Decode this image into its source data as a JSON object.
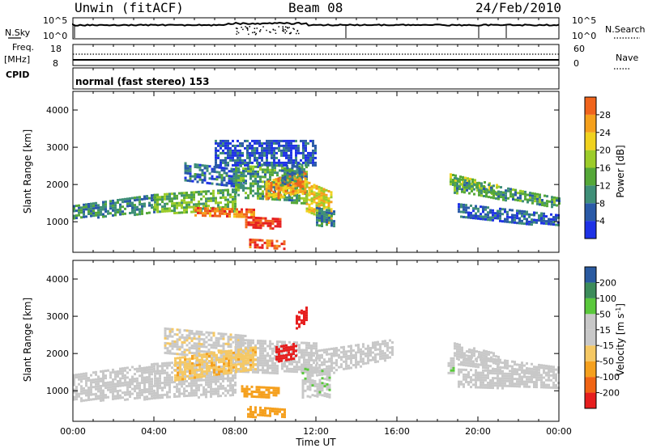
{
  "header": {
    "station": "Unwin (fitACF)",
    "beam": "Beam 08",
    "date": "24/Feb/2010"
  },
  "summary": {
    "nsky_label": "N.Sky",
    "nsky_ticks": [
      "10^5",
      "10^0"
    ],
    "nsearch_label": "N.Search",
    "nsearch_ticks": [
      "10^5",
      "10^0"
    ],
    "freq_label": "Freq.",
    "freq_unit": "[MHz]",
    "freq_ticks": [
      "18",
      "8"
    ],
    "nave_label": "Nave",
    "nave_ticks": [
      "60",
      "0"
    ],
    "cpid_label": "CPID",
    "cpid_text": "normal (fast stereo) 153"
  },
  "xaxis": {
    "label": "Time UT",
    "ticks": [
      "00:00",
      "04:00",
      "08:00",
      "12:00",
      "16:00",
      "20:00",
      "00:00"
    ]
  },
  "colors": {
    "power": [
      "#1e32e6",
      "#2a5aa8",
      "#3f8f78",
      "#55a838",
      "#9ccc2a",
      "#f0d21e",
      "#f5a01c",
      "#f0641c",
      "#e62020"
    ],
    "velocity": [
      "#e61e1e",
      "#f06414",
      "#f5a01e",
      "#f5c864",
      "#c8c8c8",
      "#c8c8c8",
      "#5ac83c",
      "#3c8c5a",
      "#2a5aa0",
      "#1e2ad2"
    ]
  },
  "chart_data": [
    {
      "type": "heatmap",
      "title": "",
      "xlabel": "",
      "ylabel": "Slant Range [km]",
      "xlim": [
        0,
        24
      ],
      "ylim": [
        180,
        4500
      ],
      "yticks": [
        "1000",
        "2000",
        "3000",
        "4000"
      ],
      "colorbar": {
        "label": "Power [dB]",
        "ticks": [
          "4",
          "8",
          "12",
          "16",
          "20",
          "24",
          "28"
        ],
        "range": [
          0,
          30
        ]
      },
      "bands": [
        {
          "t0": 0.0,
          "t1": 4.0,
          "r0": 1100,
          "r1": 1450,
          "r0e": 1250,
          "r1e": 1750,
          "v": 8
        },
        {
          "t0": 4.0,
          "t1": 8.0,
          "r0": 1250,
          "r1": 1750,
          "r0e": 1300,
          "r1e": 1900,
          "v": 12
        },
        {
          "t0": 6.0,
          "t1": 9.0,
          "r0": 1150,
          "r1": 1400,
          "r0e": 1100,
          "r1e": 1350,
          "v": 24
        },
        {
          "t0": 5.5,
          "t1": 8.5,
          "r0": 2100,
          "r1": 2600,
          "r0e": 1900,
          "r1e": 2400,
          "v": 6
        },
        {
          "t0": 8.0,
          "t1": 11.5,
          "r0": 1700,
          "r1": 2600,
          "r0e": 1500,
          "r1e": 2500,
          "v": 10
        },
        {
          "t0": 9.5,
          "t1": 11.5,
          "r0": 1600,
          "r1": 2100,
          "r0e": 1800,
          "r1e": 2400,
          "v": 22
        },
        {
          "t0": 11.5,
          "t1": 12.8,
          "r0": 1300,
          "r1": 2100,
          "r0e": 900,
          "r1e": 1800,
          "v": 18
        },
        {
          "t0": 12.0,
          "t1": 12.9,
          "r0": 900,
          "r1": 1400,
          "r0e": 900,
          "r1e": 1300,
          "v": 8
        },
        {
          "t0": 8.5,
          "t1": 10.2,
          "r0": 850,
          "r1": 1150,
          "r0e": 850,
          "r1e": 1100,
          "v": 28
        },
        {
          "t0": 8.7,
          "t1": 10.4,
          "r0": 300,
          "r1": 550,
          "r0e": 300,
          "r1e": 500,
          "v": 27
        },
        {
          "t0": 10.3,
          "t1": 11.3,
          "r0": 2000,
          "r1": 2400,
          "r0e": 2200,
          "r1e": 2700,
          "v": 8
        },
        {
          "t0": 7.0,
          "t1": 12.0,
          "r0": 2500,
          "r1": 3200,
          "r0e": 2500,
          "r1e": 3200,
          "v": 4
        },
        {
          "t0": 18.6,
          "t1": 21.0,
          "r0": 2000,
          "r1": 2300,
          "r0e": 1700,
          "r1e": 2000,
          "v": 14
        },
        {
          "t0": 18.8,
          "t1": 24.0,
          "r0": 1800,
          "r1": 2200,
          "r0e": 1400,
          "r1e": 1650,
          "v": 10
        },
        {
          "t0": 19.0,
          "t1": 24.0,
          "r0": 1100,
          "r1": 1500,
          "r0e": 900,
          "r1e": 1200,
          "v": 5
        }
      ]
    },
    {
      "type": "heatmap",
      "title": "",
      "xlabel": "Time UT",
      "ylabel": "Slant Range [km]",
      "xlim": [
        0,
        24
      ],
      "ylim": [
        180,
        4500
      ],
      "yticks": [
        "1000",
        "2000",
        "3000",
        "4000"
      ],
      "colorbar": {
        "label": "Velocity [m s^-1]",
        "ticks": [
          "-200",
          "-100",
          "-50",
          "-15",
          "15",
          "50",
          "100",
          "200"
        ],
        "levels": [
          -250,
          -200,
          -100,
          -50,
          -15,
          15,
          50,
          100,
          200,
          250
        ]
      },
      "bands": [
        {
          "t0": 0.0,
          "t1": 4.0,
          "r0": 750,
          "r1": 1450,
          "r0e": 800,
          "r1e": 1750,
          "v": 0
        },
        {
          "t0": 4.0,
          "t1": 8.0,
          "r0": 800,
          "r1": 1750,
          "r0e": 900,
          "r1e": 1900,
          "v": 0
        },
        {
          "t0": 4.5,
          "t1": 8.5,
          "r0": 2000,
          "r1": 2700,
          "r0e": 1800,
          "r1e": 2500,
          "v": -5
        },
        {
          "t0": 8.0,
          "t1": 12.0,
          "r0": 1500,
          "r1": 2400,
          "r0e": 1500,
          "r1e": 2300,
          "v": 0
        },
        {
          "t0": 12.0,
          "t1": 15.8,
          "r0": 1400,
          "r1": 2100,
          "r0e": 1900,
          "r1e": 2400,
          "v": 0
        },
        {
          "t0": 8.3,
          "t1": 10.2,
          "r0": 850,
          "r1": 1150,
          "r0e": 850,
          "r1e": 1100,
          "v": -70
        },
        {
          "t0": 8.6,
          "t1": 10.5,
          "r0": 320,
          "r1": 600,
          "r0e": 320,
          "r1e": 520,
          "v": -80
        },
        {
          "t0": 10.0,
          "t1": 11.0,
          "r0": 1800,
          "r1": 2200,
          "r0e": 1900,
          "r1e": 2300,
          "v": -220
        },
        {
          "t0": 11.0,
          "t1": 11.6,
          "r0": 2700,
          "r1": 3100,
          "r0e": 2900,
          "r1e": 3300,
          "v": -220
        },
        {
          "t0": 11.3,
          "t1": 12.7,
          "r0": 850,
          "r1": 1700,
          "r0e": 850,
          "r1e": 1500,
          "v": 40
        },
        {
          "t0": 5.0,
          "t1": 9.0,
          "r0": 1300,
          "r1": 1900,
          "r0e": 1600,
          "r1e": 2200,
          "v": -40
        },
        {
          "t0": 18.5,
          "t1": 18.8,
          "r0": 1500,
          "r1": 1900,
          "r0e": 1500,
          "r1e": 1900,
          "v": 40
        },
        {
          "t0": 18.8,
          "t1": 21.0,
          "r0": 1900,
          "r1": 2300,
          "r0e": 1700,
          "r1e": 2000,
          "v": 30
        },
        {
          "t0": 19.0,
          "t1": 24.0,
          "r0": 1100,
          "r1": 1600,
          "r0e": 1100,
          "r1e": 1500,
          "v": 0
        },
        {
          "t0": 19.0,
          "t1": 24.0,
          "r0": 1700,
          "r1": 2000,
          "r0e": 1400,
          "r1e": 1650,
          "v": 0
        }
      ]
    }
  ]
}
